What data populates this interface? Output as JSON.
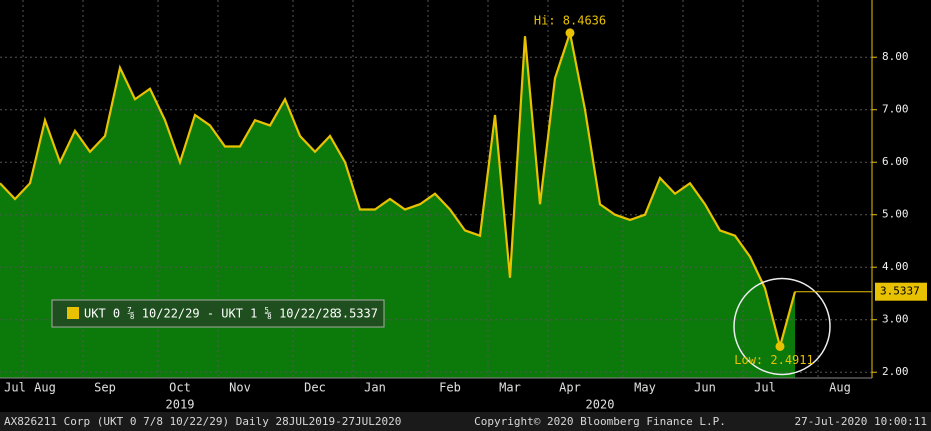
{
  "chart_data": {
    "type": "area",
    "series": [
      {
        "name": "UKT 0 ⅞ 10/22/29 - UKT 1 ⅝ 10/22/28",
        "color": "#e8c200",
        "fill": "#0b7a0b",
        "values": [
          5.6,
          5.3,
          5.6,
          6.8,
          6.0,
          6.6,
          6.2,
          6.5,
          7.8,
          7.2,
          7.4,
          6.8,
          6.0,
          6.9,
          6.7,
          6.3,
          6.3,
          6.8,
          6.7,
          7.2,
          6.5,
          6.2,
          6.5,
          6.0,
          5.1,
          5.1,
          5.3,
          5.1,
          5.2,
          5.4,
          5.1,
          4.7,
          4.6,
          6.9,
          3.8,
          8.4,
          5.2,
          7.6,
          8.4636,
          7.0,
          5.2,
          5.0,
          4.9,
          5.0,
          5.7,
          5.4,
          5.6,
          5.2,
          4.7,
          4.6,
          4.2,
          3.6,
          2.4911,
          3.5337,
          null,
          null,
          null,
          null,
          null
        ]
      }
    ],
    "categories": [
      null,
      "Jul",
      null,
      "Aug",
      null,
      null,
      null,
      "Sep",
      null,
      null,
      null,
      null,
      "Oct",
      null,
      null,
      null,
      "Nov",
      null,
      null,
      null,
      null,
      "Dec",
      null,
      null,
      null,
      "Jan",
      null,
      null,
      null,
      null,
      "Feb",
      null,
      null,
      null,
      "Mar",
      null,
      null,
      null,
      "Apr",
      null,
      null,
      null,
      null,
      "May",
      null,
      null,
      null,
      "Jun",
      null,
      null,
      null,
      "Jul",
      null,
      null,
      null,
      null,
      "Aug",
      null,
      null
    ],
    "x_group_labels": [
      "2019",
      "2020"
    ],
    "ylim": [
      1.89,
      9.09
    ],
    "yticks": [
      {
        "value": 2,
        "label": "2.00"
      },
      {
        "value": 3,
        "label": "3.00"
      },
      {
        "value": 4,
        "label": "4.00"
      },
      {
        "value": 5,
        "label": "5.00"
      },
      {
        "value": 6,
        "label": "6.00"
      },
      {
        "value": 7,
        "label": "7.00"
      },
      {
        "value": 8,
        "label": "8.00"
      }
    ],
    "grid": true,
    "annotations": [
      {
        "label": "Hi: 8.4636",
        "value": 8.4636
      },
      {
        "label": "Low: 2.4911",
        "value": 2.4911
      }
    ],
    "last_value": {
      "value": 3.5337,
      "label": "3.5337"
    },
    "legend_value": "3.5337",
    "footer": [
      "AX826211 Corp (UKT 0 7/8 10/22/29)  Daily 28JUL2019-27JUL2020",
      "Copyright© 2020 Bloomberg Finance L.P.",
      "27-Jul-2020 10:00:11"
    ]
  }
}
